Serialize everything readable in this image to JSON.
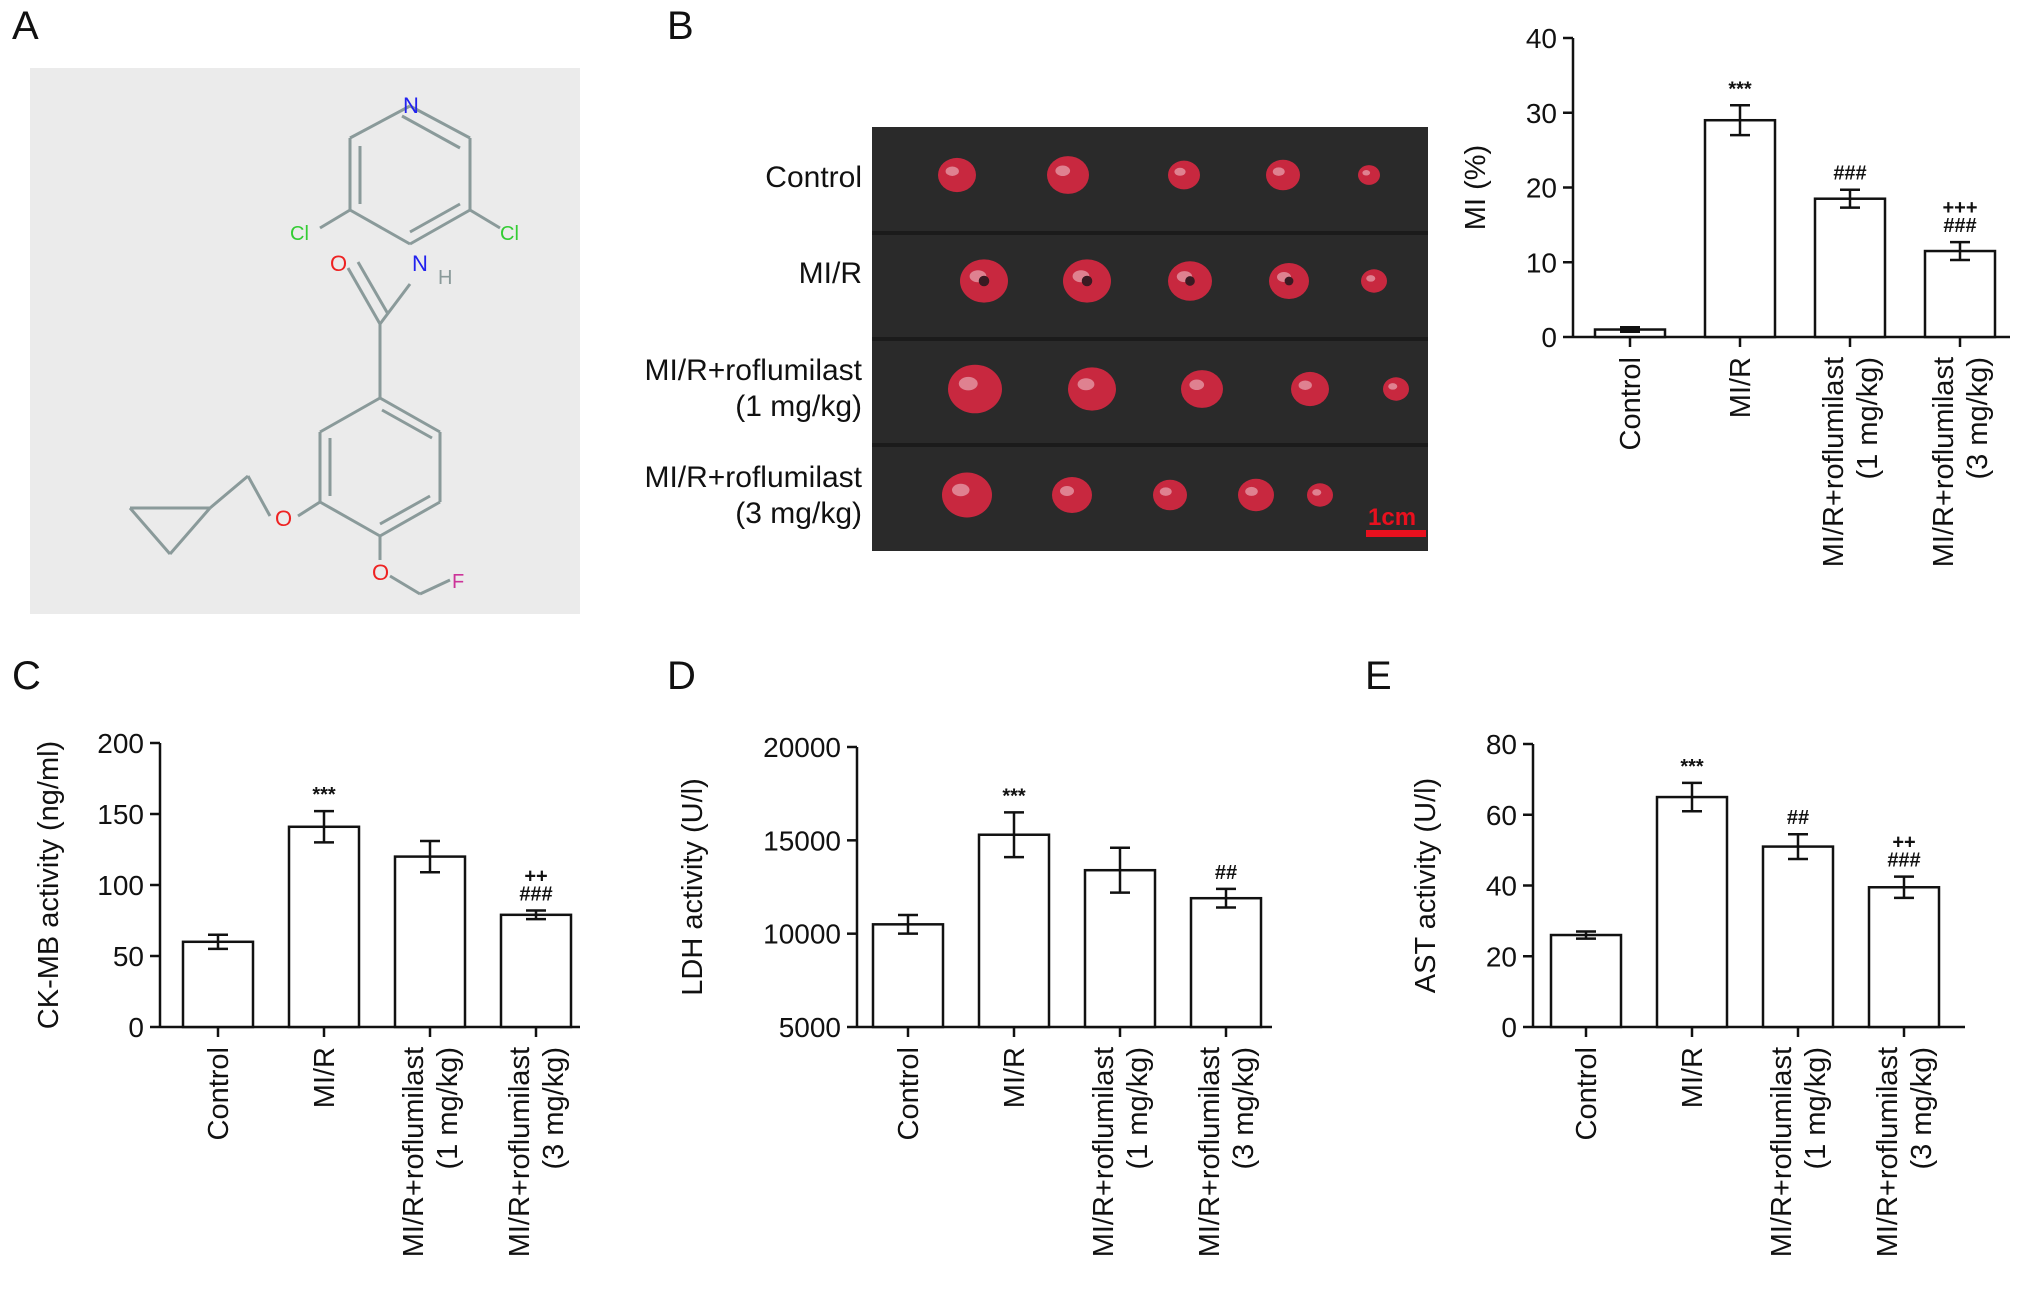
{
  "panels": {
    "a": "A",
    "b": "B",
    "c": "C",
    "d": "D",
    "e": "E"
  },
  "molecule": {
    "atoms": {
      "n": "N",
      "cl": "Cl",
      "o": "O",
      "h": "H",
      "f": "F"
    },
    "colors": {
      "bond": "#8a9a9a",
      "n": "#2222ee",
      "cl": "#33cc33",
      "o": "#ee2222",
      "f": "#cc3399",
      "background": "#ebebeb"
    }
  },
  "photo": {
    "row_labels": [
      [
        "Control"
      ],
      [
        "MI/R"
      ],
      [
        "MI/R+roflumilast",
        "(1 mg/kg)"
      ],
      [
        "MI/R+roflumilast",
        "(3 mg/kg)"
      ]
    ],
    "scale_bar": "1cm",
    "colors": {
      "background": "#2a2a2a",
      "tissue": "#c8283f",
      "scale": "#e8101e"
    }
  },
  "chart_data": [
    {
      "id": "B",
      "type": "bar",
      "categories": [
        [
          "Control"
        ],
        [
          "MI/R"
        ],
        [
          "MI/R+roflumilast",
          "(1 mg/kg)"
        ],
        [
          "MI/R+roflumilast",
          "(3 mg/kg)"
        ]
      ],
      "values": [
        1,
        29,
        18.5,
        11.5
      ],
      "errors": [
        0.3,
        2,
        1.2,
        1.2
      ],
      "annotations": [
        [],
        [
          "***"
        ],
        [
          "###"
        ],
        [
          "+++",
          "###"
        ]
      ],
      "ylabel": "MI (%)",
      "ylim": [
        0,
        40
      ],
      "yticks": [
        0,
        10,
        20,
        30,
        40
      ],
      "ytick_labels": [
        "0",
        "10",
        "20",
        "30",
        "40"
      ]
    },
    {
      "id": "C",
      "type": "bar",
      "categories": [
        [
          "Control"
        ],
        [
          "MI/R"
        ],
        [
          "MI/R+roflumilast",
          "(1 mg/kg)"
        ],
        [
          "MI/R+roflumilast",
          "(3 mg/kg)"
        ]
      ],
      "values": [
        60,
        141,
        120,
        79
      ],
      "errors": [
        5,
        11,
        11,
        3
      ],
      "annotations": [
        [],
        [
          "***"
        ],
        [],
        [
          "++",
          "###"
        ]
      ],
      "ylabel": "CK-MB activity (ng/ml)",
      "ylim": [
        0,
        200
      ],
      "yticks": [
        0,
        50,
        100,
        150,
        200
      ],
      "ytick_labels": [
        "0",
        "50",
        "100",
        "150",
        "200"
      ]
    },
    {
      "id": "D",
      "type": "bar",
      "categories": [
        [
          "Control"
        ],
        [
          "MI/R"
        ],
        [
          "MI/R+roflumilast",
          "(1 mg/kg)"
        ],
        [
          "MI/R+roflumilast",
          "(3 mg/kg)"
        ]
      ],
      "values": [
        10500,
        15300,
        13400,
        11900
      ],
      "errors": [
        500,
        1200,
        1200,
        500
      ],
      "annotations": [
        [],
        [
          "***"
        ],
        [],
        [
          "##"
        ]
      ],
      "ylabel": "LDH activity (U/l)",
      "ylim": [
        5000,
        20000
      ],
      "yticks": [
        5000,
        10000,
        15000,
        20000
      ],
      "ytick_labels": [
        "5000",
        "10000",
        "15000",
        "20000"
      ]
    },
    {
      "id": "E",
      "type": "bar",
      "categories": [
        [
          "Control"
        ],
        [
          "MI/R"
        ],
        [
          "MI/R+roflumilast",
          "(1 mg/kg)"
        ],
        [
          "MI/R+roflumilast",
          "(3 mg/kg)"
        ]
      ],
      "values": [
        26,
        65,
        51,
        39.5
      ],
      "errors": [
        1,
        4,
        3.5,
        3
      ],
      "annotations": [
        [],
        [
          "***"
        ],
        [
          "##"
        ],
        [
          "++",
          "###"
        ]
      ],
      "ylabel": "AST activity (U/l)",
      "ylim": [
        0,
        80
      ],
      "yticks": [
        0,
        20,
        40,
        60,
        80
      ],
      "ytick_labels": [
        "0",
        "20",
        "40",
        "60",
        "80"
      ]
    }
  ]
}
